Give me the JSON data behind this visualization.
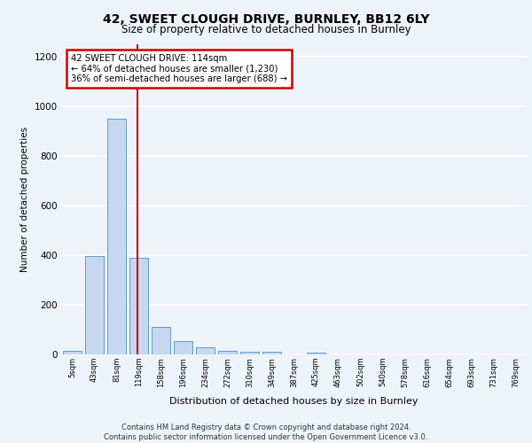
{
  "title_line1": "42, SWEET CLOUGH DRIVE, BURNLEY, BB12 6LY",
  "title_line2": "Size of property relative to detached houses in Burnley",
  "xlabel": "Distribution of detached houses by size in Burnley",
  "ylabel": "Number of detached properties",
  "categories": [
    "5sqm",
    "43sqm",
    "81sqm",
    "119sqm",
    "158sqm",
    "196sqm",
    "234sqm",
    "272sqm",
    "310sqm",
    "349sqm",
    "387sqm",
    "425sqm",
    "463sqm",
    "502sqm",
    "540sqm",
    "578sqm",
    "616sqm",
    "654sqm",
    "693sqm",
    "731sqm",
    "769sqm"
  ],
  "values": [
    15,
    395,
    950,
    390,
    110,
    52,
    27,
    15,
    12,
    10,
    0,
    8,
    0,
    0,
    0,
    0,
    0,
    0,
    0,
    0,
    0
  ],
  "bar_color": "#c5d8f0",
  "bar_edge_color": "#5b9bd5",
  "vline_x": 2.95,
  "vline_color": "#cc0000",
  "annotation_text": "42 SWEET CLOUGH DRIVE: 114sqm\n← 64% of detached houses are smaller (1,230)\n36% of semi-detached houses are larger (688) →",
  "annotation_box_color": "#ffffff",
  "annotation_box_edge": "#cc0000",
  "ylim": [
    0,
    1250
  ],
  "yticks": [
    0,
    200,
    400,
    600,
    800,
    1000,
    1200
  ],
  "background_color": "#eef2f9",
  "grid_color": "#ffffff",
  "footer": "Contains HM Land Registry data © Crown copyright and database right 2024.\nContains public sector information licensed under the Open Government Licence v3.0."
}
